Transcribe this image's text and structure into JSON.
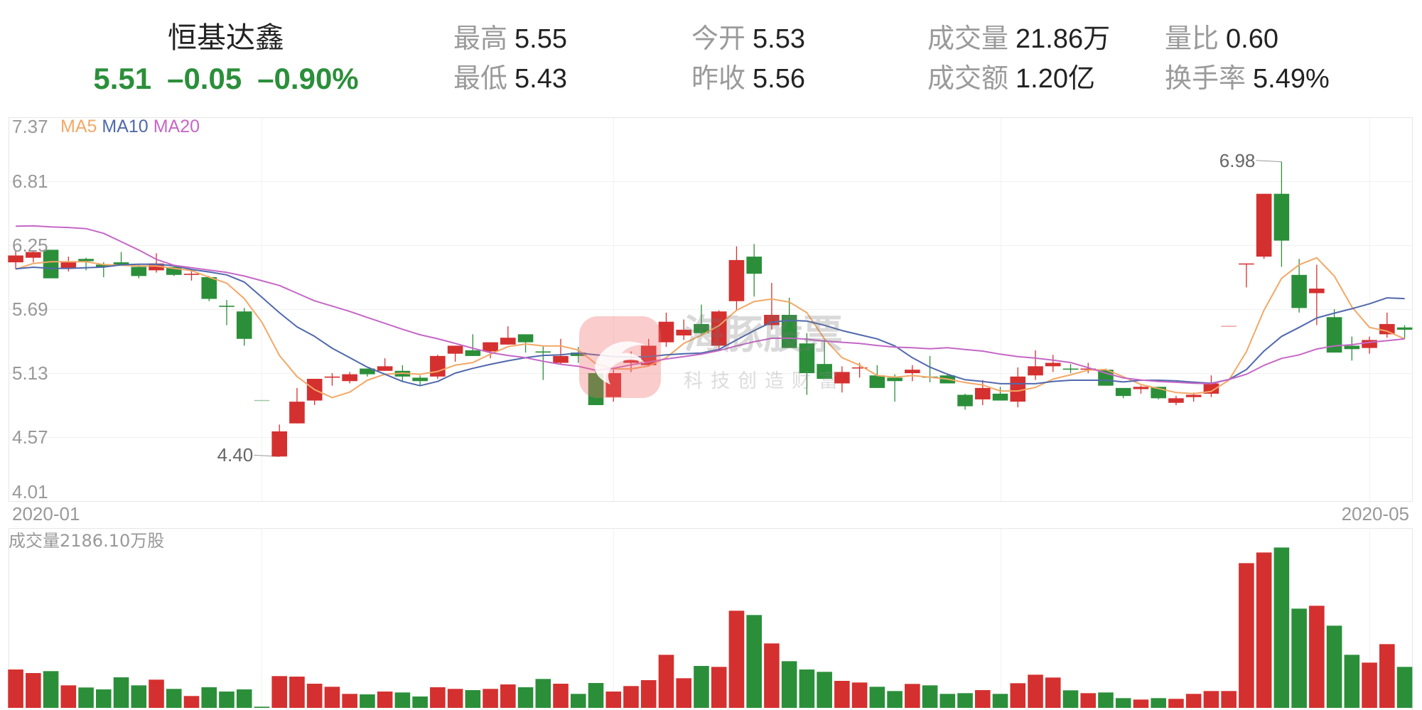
{
  "header": {
    "title": "恒基达鑫",
    "price": "5.51",
    "change": "–0.05",
    "change_pct": "–0.90%"
  },
  "stats": [
    {
      "label": "最高",
      "value": "5.55"
    },
    {
      "label": "最低",
      "value": "5.43"
    },
    {
      "label": "今开",
      "value": "5.53"
    },
    {
      "label": "昨收",
      "value": "5.56"
    },
    {
      "label": "成交量",
      "value": "21.86万"
    },
    {
      "label": "成交额",
      "value": "1.20亿"
    },
    {
      "label": "量比",
      "value": "0.60"
    },
    {
      "label": "换手率",
      "value": "5.49%"
    }
  ],
  "watermark": {
    "name": "海豚股票",
    "slogan": "科技创造财富",
    "icon": "dolphin-logo-icon"
  },
  "colors": {
    "up": "#d4302f",
    "down": "#2b8f3a",
    "ma5": "#f3a866",
    "ma10": "#5069ad",
    "ma20": "#c567c7",
    "grid": "#f1f1f1",
    "border": "#e6e6e6",
    "axis_text": "#999999",
    "annotation_text": "#666666",
    "annotation_line": "#999999"
  },
  "chart_data": [
    {
      "type": "bar",
      "subtype": "candlestick",
      "title": "恒基达鑫",
      "xlabel": "",
      "ylabel": "",
      "ylim": [
        4.01,
        7.37
      ],
      "y_ticks": [
        7.37,
        6.81,
        6.25,
        5.69,
        5.13,
        4.57,
        4.01
      ],
      "y_tick_labels": [
        "7.37",
        "6.81",
        "6.25",
        "5.69",
        "5.13",
        "4.57",
        "4.01"
      ],
      "x_tick_labels": [
        {
          "index": 0,
          "label": "2020-01"
        },
        {
          "index": 79,
          "label": "2020-05"
        }
      ],
      "vgrid_indices": [
        14,
        34,
        56,
        77
      ],
      "grid": true,
      "legend": [
        "MA5",
        "MA10",
        "MA20"
      ],
      "legend_position": "top-left",
      "ohlc_fields": [
        "open",
        "high",
        "low",
        "close"
      ],
      "ohlc": [
        [
          6.1,
          6.21,
          6.04,
          6.16
        ],
        [
          6.14,
          6.2,
          6.1,
          6.19
        ],
        [
          6.21,
          6.21,
          5.96,
          5.96
        ],
        [
          6.05,
          6.15,
          6.02,
          6.1
        ],
        [
          6.13,
          6.14,
          6.03,
          6.11
        ],
        [
          6.08,
          6.1,
          5.97,
          6.06
        ],
        [
          6.1,
          6.19,
          6.08,
          6.08
        ],
        [
          6.06,
          6.08,
          5.96,
          5.98
        ],
        [
          6.03,
          6.18,
          6.01,
          6.09
        ],
        [
          6.06,
          6.07,
          5.98,
          5.99
        ],
        [
          5.99,
          6.03,
          5.94,
          6.0
        ],
        [
          5.97,
          5.98,
          5.76,
          5.78
        ],
        [
          5.72,
          5.77,
          5.55,
          5.71
        ],
        [
          5.67,
          5.7,
          5.37,
          5.43
        ],
        [
          4.89,
          4.89,
          4.89,
          4.89
        ],
        [
          4.4,
          4.68,
          4.4,
          4.62
        ],
        [
          4.69,
          5.0,
          4.69,
          4.88
        ],
        [
          4.89,
          5.08,
          4.85,
          5.08
        ],
        [
          5.09,
          5.13,
          5.02,
          5.1
        ],
        [
          5.06,
          5.14,
          5.04,
          5.12
        ],
        [
          5.17,
          5.17,
          5.1,
          5.12
        ],
        [
          5.15,
          5.26,
          5.15,
          5.19
        ],
        [
          5.15,
          5.2,
          5.06,
          5.1
        ],
        [
          5.09,
          5.11,
          5.02,
          5.06
        ],
        [
          5.1,
          5.29,
          5.08,
          5.28
        ],
        [
          5.3,
          5.37,
          5.23,
          5.37
        ],
        [
          5.33,
          5.47,
          5.28,
          5.28
        ],
        [
          5.32,
          5.4,
          5.26,
          5.4
        ],
        [
          5.38,
          5.54,
          5.38,
          5.44
        ],
        [
          5.47,
          5.47,
          5.31,
          5.4
        ],
        [
          5.32,
          5.37,
          5.07,
          5.31
        ],
        [
          5.22,
          5.43,
          5.21,
          5.28
        ],
        [
          5.31,
          5.36,
          5.22,
          5.28
        ],
        [
          5.13,
          5.15,
          4.85,
          4.85
        ],
        [
          4.92,
          5.16,
          4.88,
          5.13
        ],
        [
          5.22,
          5.32,
          5.14,
          5.25
        ],
        [
          5.2,
          5.43,
          5.19,
          5.37
        ],
        [
          5.4,
          5.66,
          5.36,
          5.58
        ],
        [
          5.46,
          5.6,
          5.42,
          5.51
        ],
        [
          5.56,
          5.73,
          5.46,
          5.48
        ],
        [
          5.37,
          5.68,
          5.34,
          5.67
        ],
        [
          5.76,
          6.24,
          5.68,
          6.12
        ],
        [
          6.15,
          6.26,
          5.8,
          6.0
        ],
        [
          5.55,
          5.92,
          5.51,
          5.64
        ],
        [
          5.64,
          5.79,
          5.35,
          5.35
        ],
        [
          5.39,
          5.48,
          4.94,
          5.13
        ],
        [
          5.21,
          5.43,
          5.08,
          5.08
        ],
        [
          5.04,
          5.19,
          4.96,
          5.14
        ],
        [
          5.18,
          5.22,
          5.09,
          5.18
        ],
        [
          5.11,
          5.2,
          5.0,
          5.0
        ],
        [
          5.09,
          5.12,
          4.88,
          5.06
        ],
        [
          5.13,
          5.2,
          5.06,
          5.16
        ],
        [
          5.1,
          5.28,
          5.05,
          5.09
        ],
        [
          5.11,
          5.12,
          5.04,
          5.04
        ],
        [
          4.94,
          4.95,
          4.81,
          4.84
        ],
        [
          4.9,
          5.07,
          4.85,
          5.0
        ],
        [
          4.95,
          5.01,
          4.89,
          4.89
        ],
        [
          4.88,
          5.18,
          4.83,
          5.1
        ],
        [
          5.11,
          5.33,
          5.07,
          5.19
        ],
        [
          5.19,
          5.29,
          5.14,
          5.22
        ],
        [
          5.17,
          5.21,
          5.13,
          5.16
        ],
        [
          5.16,
          5.22,
          5.13,
          5.17
        ],
        [
          5.16,
          5.17,
          5.02,
          5.02
        ],
        [
          5.0,
          5.0,
          4.91,
          4.93
        ],
        [
          4.99,
          5.02,
          4.95,
          5.01
        ],
        [
          5.01,
          5.01,
          4.9,
          4.91
        ],
        [
          4.87,
          4.93,
          4.85,
          4.91
        ],
        [
          4.92,
          4.96,
          4.88,
          4.94
        ],
        [
          4.95,
          5.11,
          4.92,
          5.04
        ],
        [
          5.54,
          5.54,
          5.54,
          5.54
        ],
        [
          6.09,
          6.09,
          5.88,
          6.09
        ],
        [
          6.15,
          6.7,
          6.13,
          6.7
        ],
        [
          6.7,
          6.98,
          6.06,
          6.29
        ],
        [
          5.99,
          6.13,
          5.66,
          5.7
        ],
        [
          5.83,
          6.08,
          5.55,
          5.87
        ],
        [
          5.62,
          5.69,
          5.31,
          5.31
        ],
        [
          5.37,
          5.45,
          5.24,
          5.34
        ],
        [
          5.35,
          5.45,
          5.3,
          5.42
        ],
        [
          5.47,
          5.66,
          5.44,
          5.56
        ],
        [
          5.53,
          5.55,
          5.43,
          5.51
        ]
      ],
      "series": [
        {
          "name": "MA5",
          "type": "line",
          "values": [
            6.04,
            6.09,
            6.105,
            6.105,
            6.105,
            6.08,
            6.074,
            6.068,
            6.068,
            6.047,
            6.028,
            5.97,
            5.918,
            5.783,
            5.576,
            5.285,
            5.1,
            4.985,
            4.916,
            4.964,
            5.068,
            5.12,
            5.13,
            5.12,
            5.145,
            5.2,
            5.223,
            5.296,
            5.362,
            5.385,
            5.368,
            5.368,
            5.332,
            5.213,
            5.167,
            5.167,
            5.192,
            5.265,
            5.39,
            5.462,
            5.545,
            5.68,
            5.757,
            5.779,
            5.752,
            5.659,
            5.43,
            5.265,
            5.2,
            5.109,
            5.094,
            5.109,
            5.094,
            5.078,
            5.047,
            5.026,
            4.974,
            4.974,
            5.005,
            5.078,
            5.115,
            5.157,
            5.161,
            5.099,
            5.03,
            4.995,
            4.96,
            4.95,
            4.97,
            5.068,
            5.317,
            5.68,
            5.96,
            6.078,
            6.14,
            5.98,
            5.71,
            5.53,
            5.497,
            5.43
          ]
        },
        {
          "name": "MA10",
          "type": "line",
          "values": [
            6.043,
            6.057,
            6.047,
            6.047,
            6.053,
            6.059,
            6.078,
            6.084,
            6.084,
            6.07,
            6.037,
            6.016,
            5.99,
            5.928,
            5.794,
            5.659,
            5.535,
            5.452,
            5.348,
            5.265,
            5.182,
            5.12,
            5.057,
            5.02,
            5.057,
            5.13,
            5.172,
            5.207,
            5.238,
            5.265,
            5.285,
            5.29,
            5.306,
            5.29,
            5.275,
            5.27,
            5.275,
            5.29,
            5.3,
            5.306,
            5.337,
            5.42,
            5.503,
            5.576,
            5.592,
            5.586,
            5.549,
            5.503,
            5.466,
            5.43,
            5.368,
            5.265,
            5.182,
            5.12,
            5.072,
            5.057,
            5.037,
            5.037,
            5.037,
            5.057,
            5.068,
            5.068,
            5.068,
            5.053,
            5.068,
            5.068,
            5.062,
            5.051,
            5.041,
            5.074,
            5.161,
            5.323,
            5.452,
            5.53,
            5.613,
            5.655,
            5.694,
            5.737,
            5.789,
            5.783
          ]
        },
        {
          "name": "MA20",
          "type": "line",
          "values": [
            6.416,
            6.42,
            6.41,
            6.405,
            6.395,
            6.354,
            6.281,
            6.208,
            6.126,
            6.074,
            6.053,
            6.032,
            6.012,
            5.98,
            5.939,
            5.897,
            5.83,
            5.763,
            5.717,
            5.67,
            5.617,
            5.566,
            5.514,
            5.466,
            5.431,
            5.39,
            5.348,
            5.31,
            5.285,
            5.265,
            5.234,
            5.207,
            5.19,
            5.155,
            5.172,
            5.203,
            5.228,
            5.254,
            5.275,
            5.296,
            5.327,
            5.368,
            5.405,
            5.435,
            5.437,
            5.427,
            5.41,
            5.4,
            5.39,
            5.372,
            5.358,
            5.352,
            5.343,
            5.352,
            5.337,
            5.323,
            5.296,
            5.275,
            5.261,
            5.244,
            5.223,
            5.178,
            5.13,
            5.088,
            5.07,
            5.057,
            5.05,
            5.041,
            5.037,
            5.074,
            5.12,
            5.198,
            5.259,
            5.29,
            5.341,
            5.368,
            5.379,
            5.4,
            5.414,
            5.43
          ]
        }
      ],
      "annotations": [
        {
          "index": 15,
          "value": 4.4,
          "label": "4.40",
          "kind": "period-low"
        },
        {
          "index": 72,
          "value": 6.98,
          "label": "6.98",
          "kind": "period-high"
        }
      ]
    },
    {
      "type": "bar",
      "title": "成交量2186.10万股",
      "ylabel": "成交量",
      "unit": "万股",
      "ylim": [
        0,
        9590
      ],
      "grid": true,
      "values": [
        2046,
        1857,
        1959,
        1201,
        1087,
        985,
        1629,
        1201,
        1504,
        1012,
        633,
        1099,
        871,
        985,
        64,
        1694,
        1667,
        1288,
        1125,
        746,
        720,
        871,
        822,
        606,
        1099,
        1012,
        947,
        1012,
        1250,
        1099,
        1542,
        1288,
        746,
        1326,
        871,
        1163,
        1478,
        2830,
        1580,
        2236,
        2186,
        5180,
        4952,
        3437,
        2489,
        2046,
        1921,
        1440,
        1353,
        1125,
        898,
        1277,
        1201,
        746,
        784,
        947,
        746,
        1315,
        1769,
        1618,
        936,
        784,
        822,
        519,
        443,
        519,
        481,
        746,
        898,
        898,
        7718,
        8287,
        8552,
        5293,
        5445,
        4384,
        2830,
        2414,
        3399,
        2186.1
      ]
    }
  ]
}
